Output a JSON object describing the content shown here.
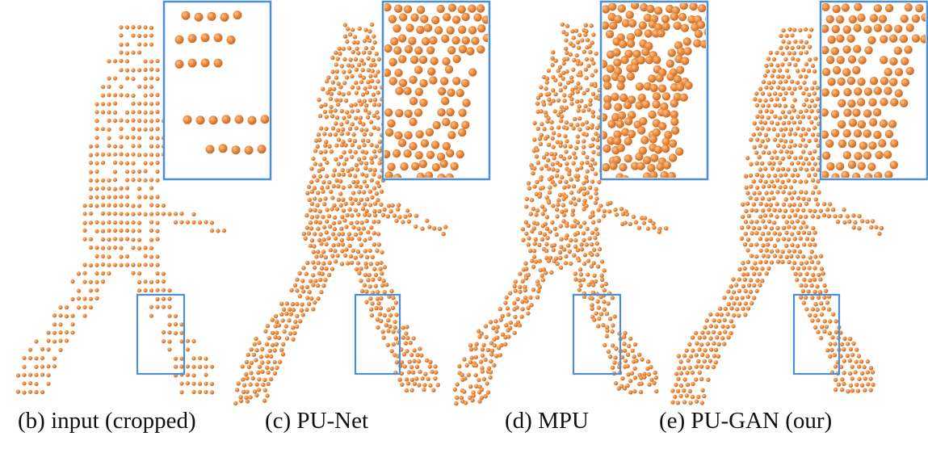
{
  "figure": {
    "colors": {
      "point": "#e98a3f",
      "point_edge": "#c76a24",
      "box": "#4a90d9",
      "background": "#ffffff"
    },
    "panels": [
      {
        "id": "b",
        "caption": "(b) input (cropped)",
        "style": "sparse"
      },
      {
        "id": "c",
        "caption": "(c) PU-Net",
        "style": "dense"
      },
      {
        "id": "d",
        "caption": "(d) MPU",
        "style": "clustered"
      },
      {
        "id": "e",
        "caption": "(e) PU-GAN (our)",
        "style": "uniform"
      }
    ]
  }
}
